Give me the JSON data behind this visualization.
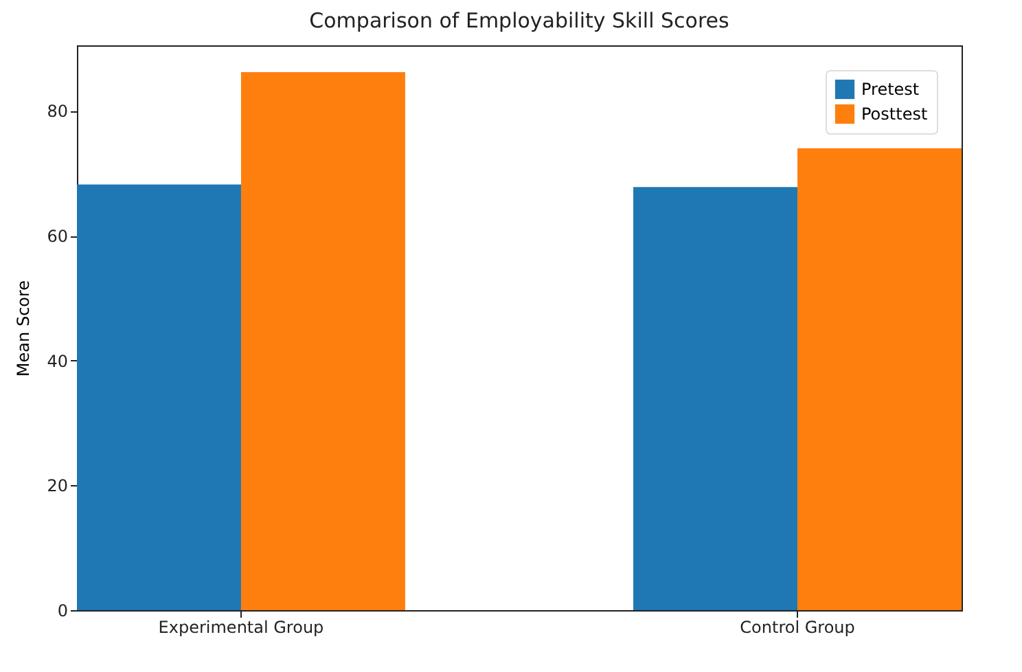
{
  "chart_data": {
    "type": "bar",
    "title": "Comparison of Employability Skill Scores",
    "ylabel": "Mean Score",
    "categories": [
      "Experimental Group",
      "Control Group"
    ],
    "series": [
      {
        "name": "Pretest",
        "color": "#1f77b4",
        "values": [
          68.2,
          67.8
        ]
      },
      {
        "name": "Posttest",
        "color": "#ff7f0e",
        "values": [
          86.2,
          74
        ]
      }
    ],
    "ylim": [
      0,
      90.5
    ],
    "yticks": [
      0,
      20,
      40,
      60,
      80
    ],
    "grid": false,
    "legend": "top right"
  }
}
